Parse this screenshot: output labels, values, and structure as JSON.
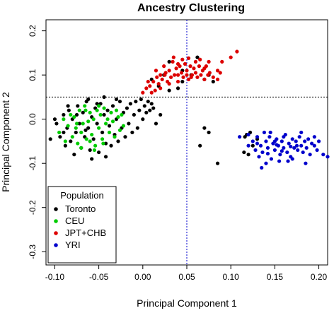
{
  "chart_data": {
    "type": "scatter",
    "title": "Ancestry Clustering",
    "xlabel": "Principal Component 1",
    "ylabel": "Principal Component 2",
    "xlim": [
      -0.11,
      0.21
    ],
    "ylim": [
      -0.33,
      0.225
    ],
    "x_ticks": [
      -0.1,
      -0.05,
      0.0,
      0.05,
      0.1,
      0.15,
      0.2
    ],
    "x_tick_labels": [
      "-0.10",
      "-0.05",
      "0.00",
      "0.05",
      "0.10",
      "0.15",
      "0.20"
    ],
    "y_ticks": [
      -0.3,
      -0.2,
      -0.1,
      0.0,
      0.1,
      0.2
    ],
    "y_tick_labels": [
      "-0.3",
      "-0.2",
      "-0.1",
      "0.0",
      "0.1",
      "0.2"
    ],
    "reference_lines": {
      "vertical_x": 0.05,
      "horizontal_y": 0.05,
      "style": "dotted"
    },
    "grid": false,
    "legend": {
      "title": "Population",
      "placement": "bottom-left"
    },
    "series": [
      {
        "name": "Toronto",
        "color": "#000000",
        "points": [
          [
            -0.105,
            -0.045
          ],
          [
            -0.098,
            -0.01
          ],
          [
            -0.094,
            -0.04
          ],
          [
            -0.09,
            0.01
          ],
          [
            -0.088,
            -0.06
          ],
          [
            -0.086,
            -0.02
          ],
          [
            -0.084,
            0.02
          ],
          [
            -0.082,
            -0.05
          ],
          [
            -0.08,
            0.0
          ],
          [
            -0.078,
            -0.08
          ],
          [
            -0.076,
            -0.03
          ],
          [
            -0.074,
            0.03
          ],
          [
            -0.072,
            -0.01
          ],
          [
            -0.07,
            -0.065
          ],
          [
            -0.068,
            0.015
          ],
          [
            -0.066,
            -0.04
          ],
          [
            -0.064,
            0.04
          ],
          [
            -0.062,
            -0.02
          ],
          [
            -0.06,
            -0.07
          ],
          [
            -0.058,
            0.005
          ],
          [
            -0.056,
            -0.045
          ],
          [
            -0.054,
            0.025
          ],
          [
            -0.052,
            -0.01
          ],
          [
            -0.05,
            -0.075
          ],
          [
            -0.048,
            0.035
          ],
          [
            -0.046,
            -0.03
          ],
          [
            -0.044,
            0.01
          ],
          [
            -0.042,
            -0.055
          ],
          [
            -0.04,
            0.02
          ],
          [
            -0.038,
            -0.015
          ],
          [
            -0.036,
            -0.06
          ],
          [
            -0.034,
            0.03
          ],
          [
            -0.032,
            -0.035
          ],
          [
            -0.03,
            0.0
          ],
          [
            -0.028,
            -0.05
          ],
          [
            -0.026,
            0.04
          ],
          [
            -0.024,
            -0.02
          ],
          [
            -0.022,
            0.015
          ],
          [
            -0.02,
            -0.04
          ],
          [
            -0.018,
            0.025
          ],
          [
            -0.016,
            -0.01
          ],
          [
            -0.014,
            0.035
          ],
          [
            -0.012,
            -0.03
          ],
          [
            -0.01,
            0.01
          ],
          [
            -0.008,
            0.04
          ],
          [
            -0.006,
            -0.02
          ],
          [
            -0.004,
            0.02
          ],
          [
            -0.002,
            0.045
          ],
          [
            0.0,
            0.0
          ],
          [
            0.002,
            0.03
          ],
          [
            0.004,
            0.015
          ],
          [
            0.006,
            0.04
          ],
          [
            0.008,
            0.02
          ],
          [
            0.01,
            0.035
          ],
          [
            -0.062,
            0.045
          ],
          [
            -0.044,
            0.05
          ],
          [
            -0.03,
            0.045
          ],
          [
            -0.058,
            -0.09
          ],
          [
            -0.042,
            -0.085
          ],
          [
            -0.052,
            0.035
          ],
          [
            -0.09,
            -0.03
          ],
          [
            -0.075,
            0.01
          ],
          [
            -0.065,
            -0.025
          ],
          [
            0.012,
            0.025
          ],
          [
            0.015,
            -0.01
          ],
          [
            0.02,
            0.01
          ],
          [
            -0.1,
            0.0
          ],
          [
            -0.085,
            0.03
          ],
          [
            0.018,
            0.075
          ],
          [
            0.03,
            0.065
          ],
          [
            0.045,
            0.085
          ],
          [
            0.055,
            0.1
          ],
          [
            0.07,
            0.09
          ],
          [
            0.075,
            0.1
          ],
          [
            0.08,
            0.085
          ],
          [
            0.062,
            0.14
          ],
          [
            0.03,
            0.13
          ],
          [
            0.01,
            0.09
          ],
          [
            0.024,
            0.1
          ],
          [
            0.045,
            0.11
          ],
          [
            0.04,
            0.07
          ],
          [
            0.07,
            -0.02
          ],
          [
            0.075,
            -0.03
          ],
          [
            0.065,
            -0.06
          ],
          [
            0.085,
            -0.1
          ],
          [
            0.115,
            -0.075
          ],
          [
            0.118,
            -0.035
          ],
          [
            0.122,
            -0.03
          ],
          [
            0.125,
            -0.06
          ],
          [
            0.12,
            -0.08
          ],
          [
            0.13,
            -0.045
          ],
          [
            0.116,
            -0.04
          ]
        ]
      },
      {
        "name": "CEU",
        "color": "#00cc00",
        "points": [
          [
            -0.095,
            -0.03
          ],
          [
            -0.09,
            0.0
          ],
          [
            -0.088,
            -0.05
          ],
          [
            -0.085,
            -0.015
          ],
          [
            -0.082,
            0.01
          ],
          [
            -0.08,
            -0.04
          ],
          [
            -0.078,
            0.005
          ],
          [
            -0.076,
            -0.02
          ],
          [
            -0.074,
            -0.055
          ],
          [
            -0.072,
            0.02
          ],
          [
            -0.07,
            -0.03
          ],
          [
            -0.068,
            -0.01
          ],
          [
            -0.066,
            0.03
          ],
          [
            -0.064,
            -0.045
          ],
          [
            -0.062,
            -0.005
          ],
          [
            -0.06,
            0.015
          ],
          [
            -0.058,
            -0.035
          ],
          [
            -0.056,
            0.0
          ],
          [
            -0.054,
            -0.06
          ],
          [
            -0.052,
            0.02
          ],
          [
            -0.05,
            -0.02
          ],
          [
            -0.048,
            0.01
          ],
          [
            -0.046,
            -0.045
          ],
          [
            -0.044,
            0.025
          ],
          [
            -0.042,
            -0.01
          ],
          [
            -0.04,
            0.0
          ],
          [
            -0.038,
            -0.03
          ],
          [
            -0.036,
            0.015
          ],
          [
            -0.034,
            -0.005
          ],
          [
            -0.032,
            -0.04
          ],
          [
            -0.03,
            0.02
          ],
          [
            -0.028,
            0.005
          ],
          [
            -0.026,
            -0.025
          ],
          [
            -0.024,
            0.01
          ],
          [
            -0.022,
            -0.015
          ],
          [
            -0.065,
            0.02
          ],
          [
            -0.07,
            -0.065
          ],
          [
            -0.055,
            -0.07
          ],
          [
            -0.045,
            -0.055
          ],
          [
            -0.075,
            -0.01
          ],
          [
            -0.05,
            0.03
          ],
          [
            -0.06,
            -0.05
          ]
        ]
      },
      {
        "name": "JPT+CHB",
        "color": "#dd0000",
        "points": [
          [
            0.0,
            0.06
          ],
          [
            0.004,
            0.07
          ],
          [
            0.008,
            0.075
          ],
          [
            0.012,
            0.085
          ],
          [
            0.014,
            0.065
          ],
          [
            0.016,
            0.095
          ],
          [
            0.018,
            0.08
          ],
          [
            0.02,
            0.1
          ],
          [
            0.022,
            0.09
          ],
          [
            0.024,
            0.12
          ],
          [
            0.026,
            0.105
          ],
          [
            0.028,
            0.085
          ],
          [
            0.03,
            0.11
          ],
          [
            0.032,
            0.095
          ],
          [
            0.034,
            0.13
          ],
          [
            0.036,
            0.1
          ],
          [
            0.038,
            0.115
          ],
          [
            0.04,
            0.085
          ],
          [
            0.042,
            0.12
          ],
          [
            0.044,
            0.105
          ],
          [
            0.046,
            0.095
          ],
          [
            0.048,
            0.125
          ],
          [
            0.05,
            0.11
          ],
          [
            0.052,
            0.09
          ],
          [
            0.054,
            0.12
          ],
          [
            0.056,
            0.1
          ],
          [
            0.058,
            0.115
          ],
          [
            0.06,
            0.105
          ],
          [
            0.062,
            0.095
          ],
          [
            0.064,
            0.12
          ],
          [
            0.066,
            0.1
          ],
          [
            0.068,
            0.11
          ],
          [
            0.07,
            0.09
          ],
          [
            0.072,
            0.12
          ],
          [
            0.074,
            0.1
          ],
          [
            0.076,
            0.105
          ],
          [
            0.08,
            0.095
          ],
          [
            0.085,
            0.11
          ],
          [
            0.09,
            0.13
          ],
          [
            0.052,
            0.138
          ],
          [
            0.06,
            0.13
          ],
          [
            0.065,
            0.135
          ],
          [
            0.045,
            0.135
          ],
          [
            0.035,
            0.14
          ],
          [
            0.025,
            0.1
          ],
          [
            0.02,
            0.07
          ],
          [
            0.01,
            0.06
          ],
          [
            0.03,
            0.08
          ],
          [
            0.04,
            0.1
          ],
          [
            0.05,
            0.1
          ],
          [
            0.055,
            0.095
          ],
          [
            0.07,
            0.115
          ],
          [
            0.085,
            0.09
          ],
          [
            0.1,
            0.14
          ],
          [
            0.107,
            0.153
          ],
          [
            0.015,
            0.11
          ],
          [
            0.04,
            0.125
          ],
          [
            0.075,
            0.13
          ],
          [
            0.088,
            0.105
          ],
          [
            0.006,
            0.085
          ]
        ]
      },
      {
        "name": "YRI",
        "color": "#0000cc",
        "points": [
          [
            0.11,
            -0.04
          ],
          [
            0.12,
            -0.035
          ],
          [
            0.125,
            -0.05
          ],
          [
            0.128,
            -0.07
          ],
          [
            0.13,
            -0.055
          ],
          [
            0.132,
            -0.085
          ],
          [
            0.134,
            -0.06
          ],
          [
            0.136,
            -0.075
          ],
          [
            0.138,
            -0.03
          ],
          [
            0.14,
            -0.05
          ],
          [
            0.142,
            -0.065
          ],
          [
            0.144,
            -0.04
          ],
          [
            0.146,
            -0.09
          ],
          [
            0.148,
            -0.055
          ],
          [
            0.15,
            -0.07
          ],
          [
            0.152,
            -0.045
          ],
          [
            0.154,
            -0.06
          ],
          [
            0.156,
            -0.08
          ],
          [
            0.158,
            -0.05
          ],
          [
            0.16,
            -0.065
          ],
          [
            0.162,
            -0.035
          ],
          [
            0.164,
            -0.075
          ],
          [
            0.166,
            -0.055
          ],
          [
            0.168,
            -0.085
          ],
          [
            0.17,
            -0.045
          ],
          [
            0.172,
            -0.065
          ],
          [
            0.174,
            -0.05
          ],
          [
            0.176,
            -0.07
          ],
          [
            0.178,
            -0.04
          ],
          [
            0.18,
            -0.06
          ],
          [
            0.182,
            -0.075
          ],
          [
            0.184,
            -0.05
          ],
          [
            0.186,
            -0.065
          ],
          [
            0.188,
            -0.045
          ],
          [
            0.19,
            -0.08
          ],
          [
            0.192,
            -0.055
          ],
          [
            0.195,
            -0.06
          ],
          [
            0.198,
            -0.07
          ],
          [
            0.2,
            -0.05
          ],
          [
            0.205,
            -0.08
          ],
          [
            0.21,
            -0.085
          ],
          [
            0.14,
            -0.1
          ],
          [
            0.135,
            -0.11
          ],
          [
            0.155,
            -0.095
          ],
          [
            0.145,
            -0.03
          ],
          [
            0.17,
            -0.09
          ],
          [
            0.185,
            -0.1
          ],
          [
            0.16,
            -0.04
          ],
          [
            0.15,
            -0.05
          ],
          [
            0.175,
            -0.06
          ],
          [
            0.13,
            -0.04
          ],
          [
            0.165,
            -0.095
          ],
          [
            0.18,
            -0.03
          ],
          [
            0.195,
            -0.04
          ],
          [
            0.12,
            -0.06
          ],
          [
            0.158,
            -0.072
          ],
          [
            0.142,
            -0.078
          ],
          [
            0.168,
            -0.062
          ],
          [
            0.152,
            -0.058
          ]
        ]
      }
    ]
  }
}
